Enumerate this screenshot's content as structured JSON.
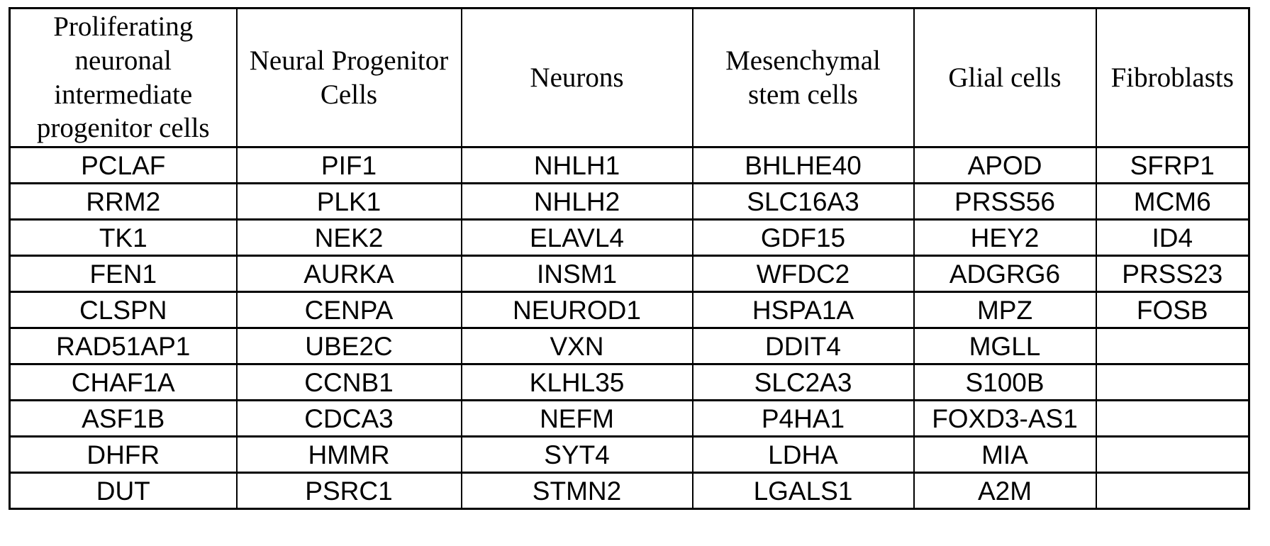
{
  "table": {
    "description": "Marker gene table by cell type",
    "colors": {
      "border": "#000000",
      "text": "#000000",
      "background": "#ffffff"
    },
    "columns": [
      {
        "header": "Proliferating neuronal intermediate progenitor cells",
        "genes": [
          "PCLAF",
          "RRM2",
          "TK1",
          "FEN1",
          "CLSPN",
          "RAD51AP1",
          "CHAF1A",
          "ASF1B",
          "DHFR",
          "DUT"
        ]
      },
      {
        "header": "Neural Progenitor Cells",
        "genes": [
          "PIF1",
          "PLK1",
          "NEK2",
          "AURKA",
          "CENPA",
          "UBE2C",
          "CCNB1",
          "CDCA3",
          "HMMR",
          "PSRC1"
        ]
      },
      {
        "header": "Neurons",
        "genes": [
          "NHLH1",
          "NHLH2",
          "ELAVL4",
          "INSM1",
          "NEUROD1",
          "VXN",
          "KLHL35",
          "NEFM",
          "SYT4",
          "STMN2"
        ]
      },
      {
        "header": "Mesenchymal stem cells",
        "genes": [
          "BHLHE40",
          "SLC16A3",
          "GDF15",
          "WFDC2",
          "HSPA1A",
          "DDIT4",
          "SLC2A3",
          "P4HA1",
          "LDHA",
          "LGALS1"
        ]
      },
      {
        "header": "Glial cells",
        "genes": [
          "APOD",
          "PRSS56",
          "HEY2",
          "ADGRG6",
          "MPZ",
          "MGLL",
          "S100B",
          "FOXD3-AS1",
          "MIA",
          "A2M"
        ]
      },
      {
        "header": "Fibroblasts",
        "genes": [
          "SFRP1",
          "MCM6",
          "ID4",
          "PRSS23",
          "FOSB",
          "",
          "",
          "",
          "",
          ""
        ]
      }
    ]
  }
}
